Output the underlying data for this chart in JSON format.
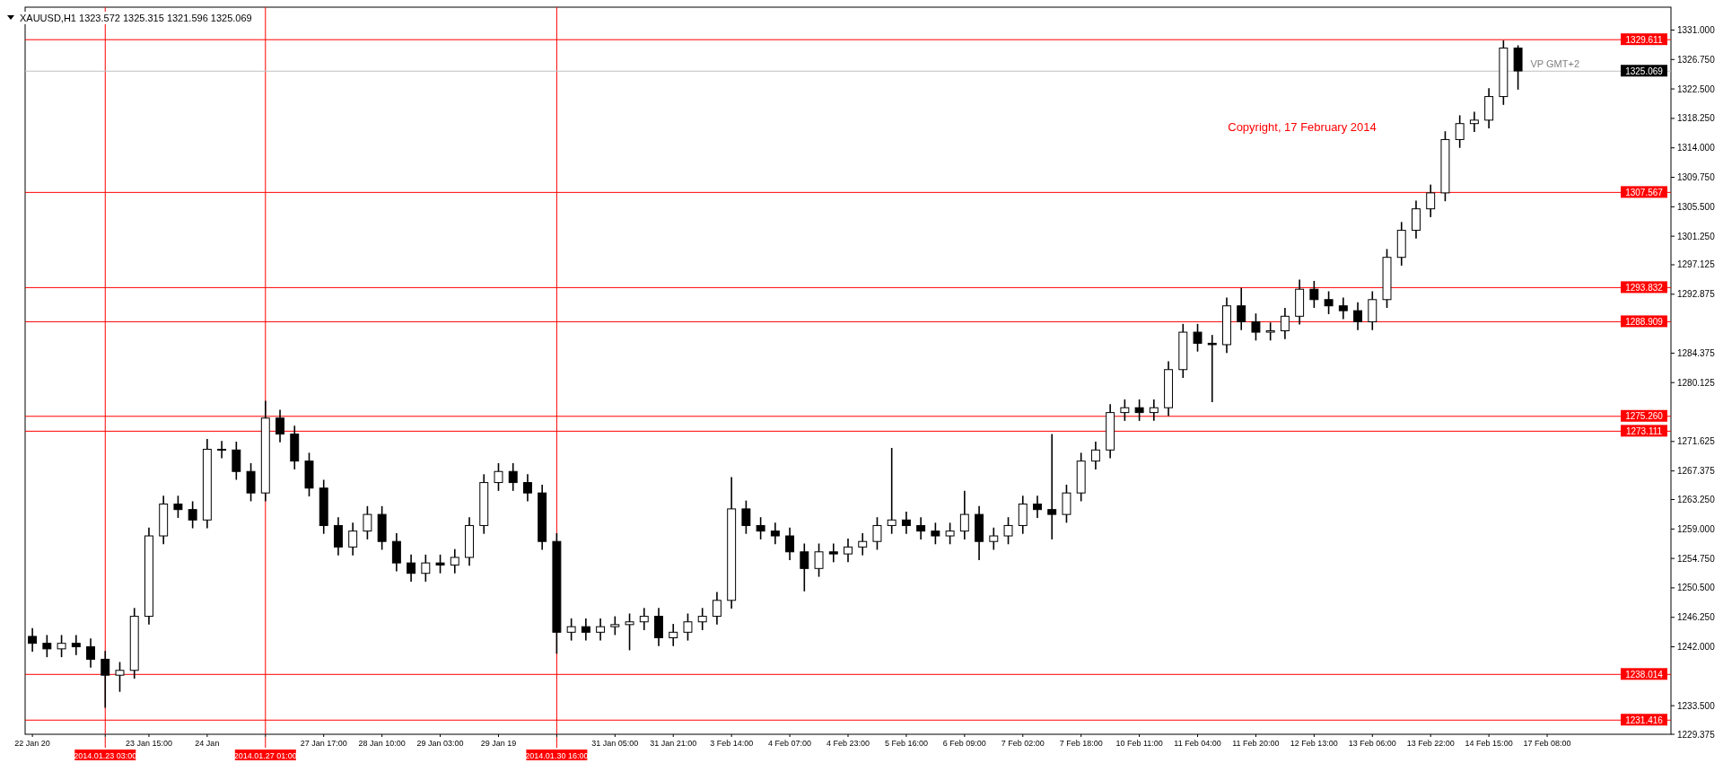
{
  "chart_data": {
    "type": "candlestick",
    "title": "XAUUSD,H1  1323.572 1325.315 1321.596 1325.069",
    "annotations": [
      "VP GMT+2",
      "Copyright, 17 February 2014"
    ],
    "color": "#000000",
    "categories": [
      "22 Jan 20",
      null,
      null,
      null,
      null,
      "2014.01.23 03:00",
      null,
      null,
      "23 Jan 15:00",
      null,
      null,
      null,
      "24 Jan",
      null,
      null,
      null,
      "2014.01.27 01:00",
      null,
      null,
      null,
      "27 Jan 17:00",
      null,
      null,
      null,
      "28 Jan 10:00",
      null,
      null,
      null,
      "29 Jan 03:00",
      null,
      null,
      null,
      "29 Jan 19",
      null,
      null,
      null,
      "2014.01.30 16:00",
      null,
      null,
      null,
      "31 Jan 05:00",
      null,
      null,
      null,
      "31 Jan 21:00",
      null,
      null,
      null,
      "3 Feb 14:00",
      null,
      null,
      null,
      "4 Feb 07:00",
      null,
      null,
      null,
      "4 Feb 23:00",
      null,
      null,
      null,
      "5 Feb 16:00",
      null,
      null,
      null,
      "6 Feb 09:00",
      null,
      null,
      null,
      "7 Feb 02:00",
      null,
      null,
      null,
      "7 Feb 18:00",
      null,
      null,
      null,
      "10 Feb 11:00",
      null,
      null,
      null,
      "11 Feb 04:00",
      null,
      null,
      null,
      "11 Feb 20:00",
      null,
      null,
      null,
      "12 Feb 13:00",
      null,
      null,
      null,
      "13 Feb 06:00",
      null,
      null,
      null,
      "13 Feb 22:00",
      null,
      null,
      null,
      "14 Feb 15:00",
      null,
      null,
      null,
      "17 Feb 08:00",
      null,
      null,
      null,
      null,
      null,
      null,
      null,
      null
    ],
    "ohlc": [
      [
        1243.5,
        1244.7,
        1241.3,
        1242.5
      ],
      [
        1242.5,
        1243.7,
        1240.5,
        1241.7
      ],
      [
        1241.7,
        1243.7,
        1240.5,
        1242.5
      ],
      [
        1242.5,
        1243.7,
        1240.8,
        1242.0
      ],
      [
        1242.0,
        1243.2,
        1239.0,
        1240.2
      ],
      [
        1240.2,
        1241.4,
        1233.2,
        1237.9
      ],
      [
        1237.9,
        1239.8,
        1235.5,
        1238.6
      ],
      [
        1238.6,
        1247.6,
        1237.4,
        1246.4
      ],
      [
        1246.4,
        1259.2,
        1245.2,
        1258.0
      ],
      [
        1258.0,
        1263.8,
        1256.8,
        1262.6
      ],
      [
        1262.6,
        1263.8,
        1260.6,
        1261.8
      ],
      [
        1261.8,
        1263.0,
        1259.1,
        1260.3
      ],
      [
        1260.3,
        1272.0,
        1259.1,
        1270.5
      ],
      [
        1270.5,
        1271.7,
        1269.2,
        1270.4
      ],
      [
        1270.4,
        1271.6,
        1266.1,
        1267.3
      ],
      [
        1267.3,
        1268.5,
        1263.0,
        1264.2
      ],
      [
        1264.2,
        1277.5,
        1263.0,
        1275.0
      ],
      [
        1275.0,
        1276.2,
        1271.5,
        1272.7
      ],
      [
        1272.7,
        1273.9,
        1267.6,
        1268.8
      ],
      [
        1268.8,
        1270.0,
        1263.7,
        1264.9
      ],
      [
        1264.9,
        1266.1,
        1258.3,
        1259.5
      ],
      [
        1259.5,
        1260.7,
        1255.2,
        1256.4
      ],
      [
        1256.4,
        1259.9,
        1255.2,
        1258.7
      ],
      [
        1258.7,
        1262.3,
        1257.5,
        1261.1
      ],
      [
        1261.1,
        1262.3,
        1256.0,
        1257.2
      ],
      [
        1257.2,
        1258.4,
        1252.9,
        1254.1
      ],
      [
        1254.1,
        1255.3,
        1251.4,
        1252.6
      ],
      [
        1252.6,
        1255.3,
        1251.4,
        1254.1
      ],
      [
        1254.1,
        1255.3,
        1252.6,
        1253.8
      ],
      [
        1253.8,
        1256.1,
        1252.6,
        1254.9
      ],
      [
        1254.9,
        1260.7,
        1253.7,
        1259.5
      ],
      [
        1259.5,
        1266.9,
        1258.3,
        1265.7
      ],
      [
        1265.7,
        1268.5,
        1264.5,
        1267.3
      ],
      [
        1267.3,
        1268.5,
        1264.5,
        1265.7
      ],
      [
        1265.7,
        1266.9,
        1263.0,
        1264.2
      ],
      [
        1264.2,
        1265.4,
        1256.0,
        1257.2
      ],
      [
        1257.2,
        1258.4,
        1241.0,
        1244.1
      ],
      [
        1244.1,
        1246.1,
        1242.9,
        1244.9
      ],
      [
        1244.9,
        1246.1,
        1242.9,
        1244.1
      ],
      [
        1244.1,
        1246.1,
        1242.9,
        1244.9
      ],
      [
        1244.9,
        1246.4,
        1243.7,
        1245.2
      ],
      [
        1245.2,
        1246.8,
        1241.5,
        1245.6
      ],
      [
        1245.6,
        1247.6,
        1244.4,
        1246.4
      ],
      [
        1246.4,
        1247.6,
        1242.1,
        1243.3
      ],
      [
        1243.3,
        1245.3,
        1242.1,
        1244.1
      ],
      [
        1244.1,
        1246.8,
        1242.9,
        1245.6
      ],
      [
        1245.6,
        1247.6,
        1244.4,
        1246.4
      ],
      [
        1246.4,
        1249.9,
        1245.2,
        1248.7
      ],
      [
        1248.7,
        1266.5,
        1247.5,
        1261.9
      ],
      [
        1261.9,
        1263.1,
        1258.3,
        1259.5
      ],
      [
        1259.5,
        1260.7,
        1257.5,
        1258.7
      ],
      [
        1258.7,
        1259.9,
        1256.8,
        1258.0
      ],
      [
        1258.0,
        1259.2,
        1254.5,
        1255.7
      ],
      [
        1255.7,
        1256.9,
        1250.0,
        1253.3
      ],
      [
        1253.3,
        1256.9,
        1252.1,
        1255.7
      ],
      [
        1255.7,
        1256.9,
        1254.2,
        1255.4
      ],
      [
        1255.4,
        1257.6,
        1254.2,
        1256.4
      ],
      [
        1256.4,
        1258.4,
        1255.2,
        1257.2
      ],
      [
        1257.2,
        1260.7,
        1256.0,
        1259.5
      ],
      [
        1259.5,
        1270.7,
        1258.3,
        1260.3
      ],
      [
        1260.3,
        1261.5,
        1258.3,
        1259.5
      ],
      [
        1259.5,
        1260.7,
        1257.5,
        1258.7
      ],
      [
        1258.7,
        1259.9,
        1256.8,
        1258.0
      ],
      [
        1258.0,
        1259.9,
        1256.8,
        1258.7
      ],
      [
        1258.7,
        1264.5,
        1257.5,
        1261.1
      ],
      [
        1261.1,
        1262.3,
        1254.5,
        1257.2
      ],
      [
        1257.2,
        1259.2,
        1256.0,
        1258.0
      ],
      [
        1258.0,
        1260.7,
        1256.8,
        1259.5
      ],
      [
        1259.5,
        1263.8,
        1258.3,
        1262.6
      ],
      [
        1262.6,
        1263.8,
        1260.6,
        1261.8
      ],
      [
        1261.8,
        1272.7,
        1257.5,
        1261.1
      ],
      [
        1261.1,
        1265.4,
        1259.9,
        1264.2
      ],
      [
        1264.2,
        1270.0,
        1263.0,
        1268.8
      ],
      [
        1268.8,
        1271.6,
        1267.6,
        1270.4
      ],
      [
        1270.4,
        1277.0,
        1269.2,
        1275.8
      ],
      [
        1275.8,
        1277.7,
        1274.6,
        1276.5
      ],
      [
        1276.5,
        1277.7,
        1274.6,
        1275.8
      ],
      [
        1275.8,
        1277.7,
        1274.6,
        1276.5
      ],
      [
        1276.5,
        1283.2,
        1275.3,
        1282.0
      ],
      [
        1282.0,
        1288.6,
        1280.8,
        1287.4
      ],
      [
        1287.4,
        1288.6,
        1284.6,
        1285.8
      ],
      [
        1285.8,
        1287.0,
        1277.3,
        1285.6
      ],
      [
        1285.6,
        1292.4,
        1284.4,
        1291.2
      ],
      [
        1291.2,
        1293.8,
        1287.7,
        1288.9
      ],
      [
        1288.9,
        1290.1,
        1286.2,
        1287.4
      ],
      [
        1287.4,
        1288.8,
        1286.2,
        1287.6
      ],
      [
        1287.6,
        1290.9,
        1286.4,
        1289.7
      ],
      [
        1289.7,
        1295.0,
        1288.5,
        1293.6
      ],
      [
        1293.6,
        1294.8,
        1290.9,
        1292.1
      ],
      [
        1292.1,
        1293.3,
        1290.0,
        1291.2
      ],
      [
        1291.2,
        1292.4,
        1289.3,
        1290.5
      ],
      [
        1290.5,
        1291.7,
        1287.7,
        1288.9
      ],
      [
        1288.9,
        1293.3,
        1287.7,
        1292.1
      ],
      [
        1292.1,
        1299.4,
        1290.9,
        1298.2
      ],
      [
        1298.2,
        1303.3,
        1297.0,
        1302.1
      ],
      [
        1302.1,
        1306.4,
        1300.9,
        1305.2
      ],
      [
        1305.2,
        1308.7,
        1304.0,
        1307.5
      ],
      [
        1307.5,
        1316.4,
        1306.3,
        1315.2
      ],
      [
        1315.2,
        1318.7,
        1314.0,
        1317.5
      ],
      [
        1317.5,
        1319.2,
        1316.3,
        1318.0
      ],
      [
        1318.0,
        1322.6,
        1316.8,
        1321.4
      ],
      [
        1321.4,
        1329.5,
        1320.2,
        1328.4
      ],
      [
        1328.4,
        1328.8,
        1322.4,
        1325.1
      ],
      null,
      null,
      null,
      null,
      null,
      null,
      null,
      null,
      null,
      null
    ],
    "ylim": [
      1229.375,
      1334.3
    ],
    "yticks": [
      {
        "value": 1331,
        "label": "1331.000"
      },
      {
        "value": 1326.75,
        "label": "1326.750"
      },
      {
        "value": 1322.5,
        "label": "1322.500"
      },
      {
        "value": 1318.25,
        "label": "1318.250"
      },
      {
        "value": 1314,
        "label": "1314.000"
      },
      {
        "value": 1309.75,
        "label": "1309.750"
      },
      {
        "value": 1305.5,
        "label": "1305.500"
      },
      {
        "value": 1301.25,
        "label": "1301.250"
      },
      {
        "value": 1297.125,
        "label": "1297.125"
      },
      {
        "value": 1292.875,
        "label": "1292.875"
      },
      {
        "value": 1284.375,
        "label": "1284.375"
      },
      {
        "value": 1280.125,
        "label": "1280.125"
      },
      {
        "value": 1271.625,
        "label": "1271.625"
      },
      {
        "value": 1267.375,
        "label": "1267.375"
      },
      {
        "value": 1263.25,
        "label": "1263.250"
      },
      {
        "value": 1259,
        "label": "1259.000"
      },
      {
        "value": 1254.75,
        "label": "1254.750"
      },
      {
        "value": 1250.5,
        "label": "1250.500"
      },
      {
        "value": 1246.25,
        "label": "1246.250"
      },
      {
        "value": 1242,
        "label": "1242.000"
      },
      {
        "value": 1233.5,
        "label": "1233.500"
      },
      {
        "value": 1229.375,
        "label": "1229.375"
      }
    ],
    "ref_lines": [
      {
        "axis": "y",
        "value": 1329.611,
        "label": "1329.611",
        "color": "#ff0000"
      },
      {
        "axis": "y",
        "value": 1325.069,
        "label": "1325.069",
        "color": "#c0c0c0"
      },
      {
        "axis": "y",
        "value": 1307.567,
        "label": "1307.567",
        "color": "#ff0000"
      },
      {
        "axis": "y",
        "value": 1293.832,
        "label": "1293.832",
        "color": "#ff0000"
      },
      {
        "axis": "y",
        "value": 1288.909,
        "label": "1288.909",
        "color": "#ff0000"
      },
      {
        "axis": "y",
        "value": 1275.26,
        "label": "1275.260",
        "color": "#ff0000"
      },
      {
        "axis": "y",
        "value": 1273.111,
        "label": "1273.111",
        "color": "#ff0000"
      },
      {
        "axis": "y",
        "value": 1238.014,
        "label": "1238.014",
        "color": "#ff0000"
      },
      {
        "axis": "y",
        "value": 1231.416,
        "label": "1231.416",
        "color": "#ff0000"
      },
      {
        "axis": "x",
        "value": "2014.01.23 03:00",
        "color": "#ff0000"
      },
      {
        "axis": "x",
        "value": "2014.01.27 01:00",
        "color": "#ff0000"
      },
      {
        "axis": "x",
        "value": "2014.01.30 16:00",
        "color": "#ff0000"
      }
    ],
    "grid": false
  }
}
